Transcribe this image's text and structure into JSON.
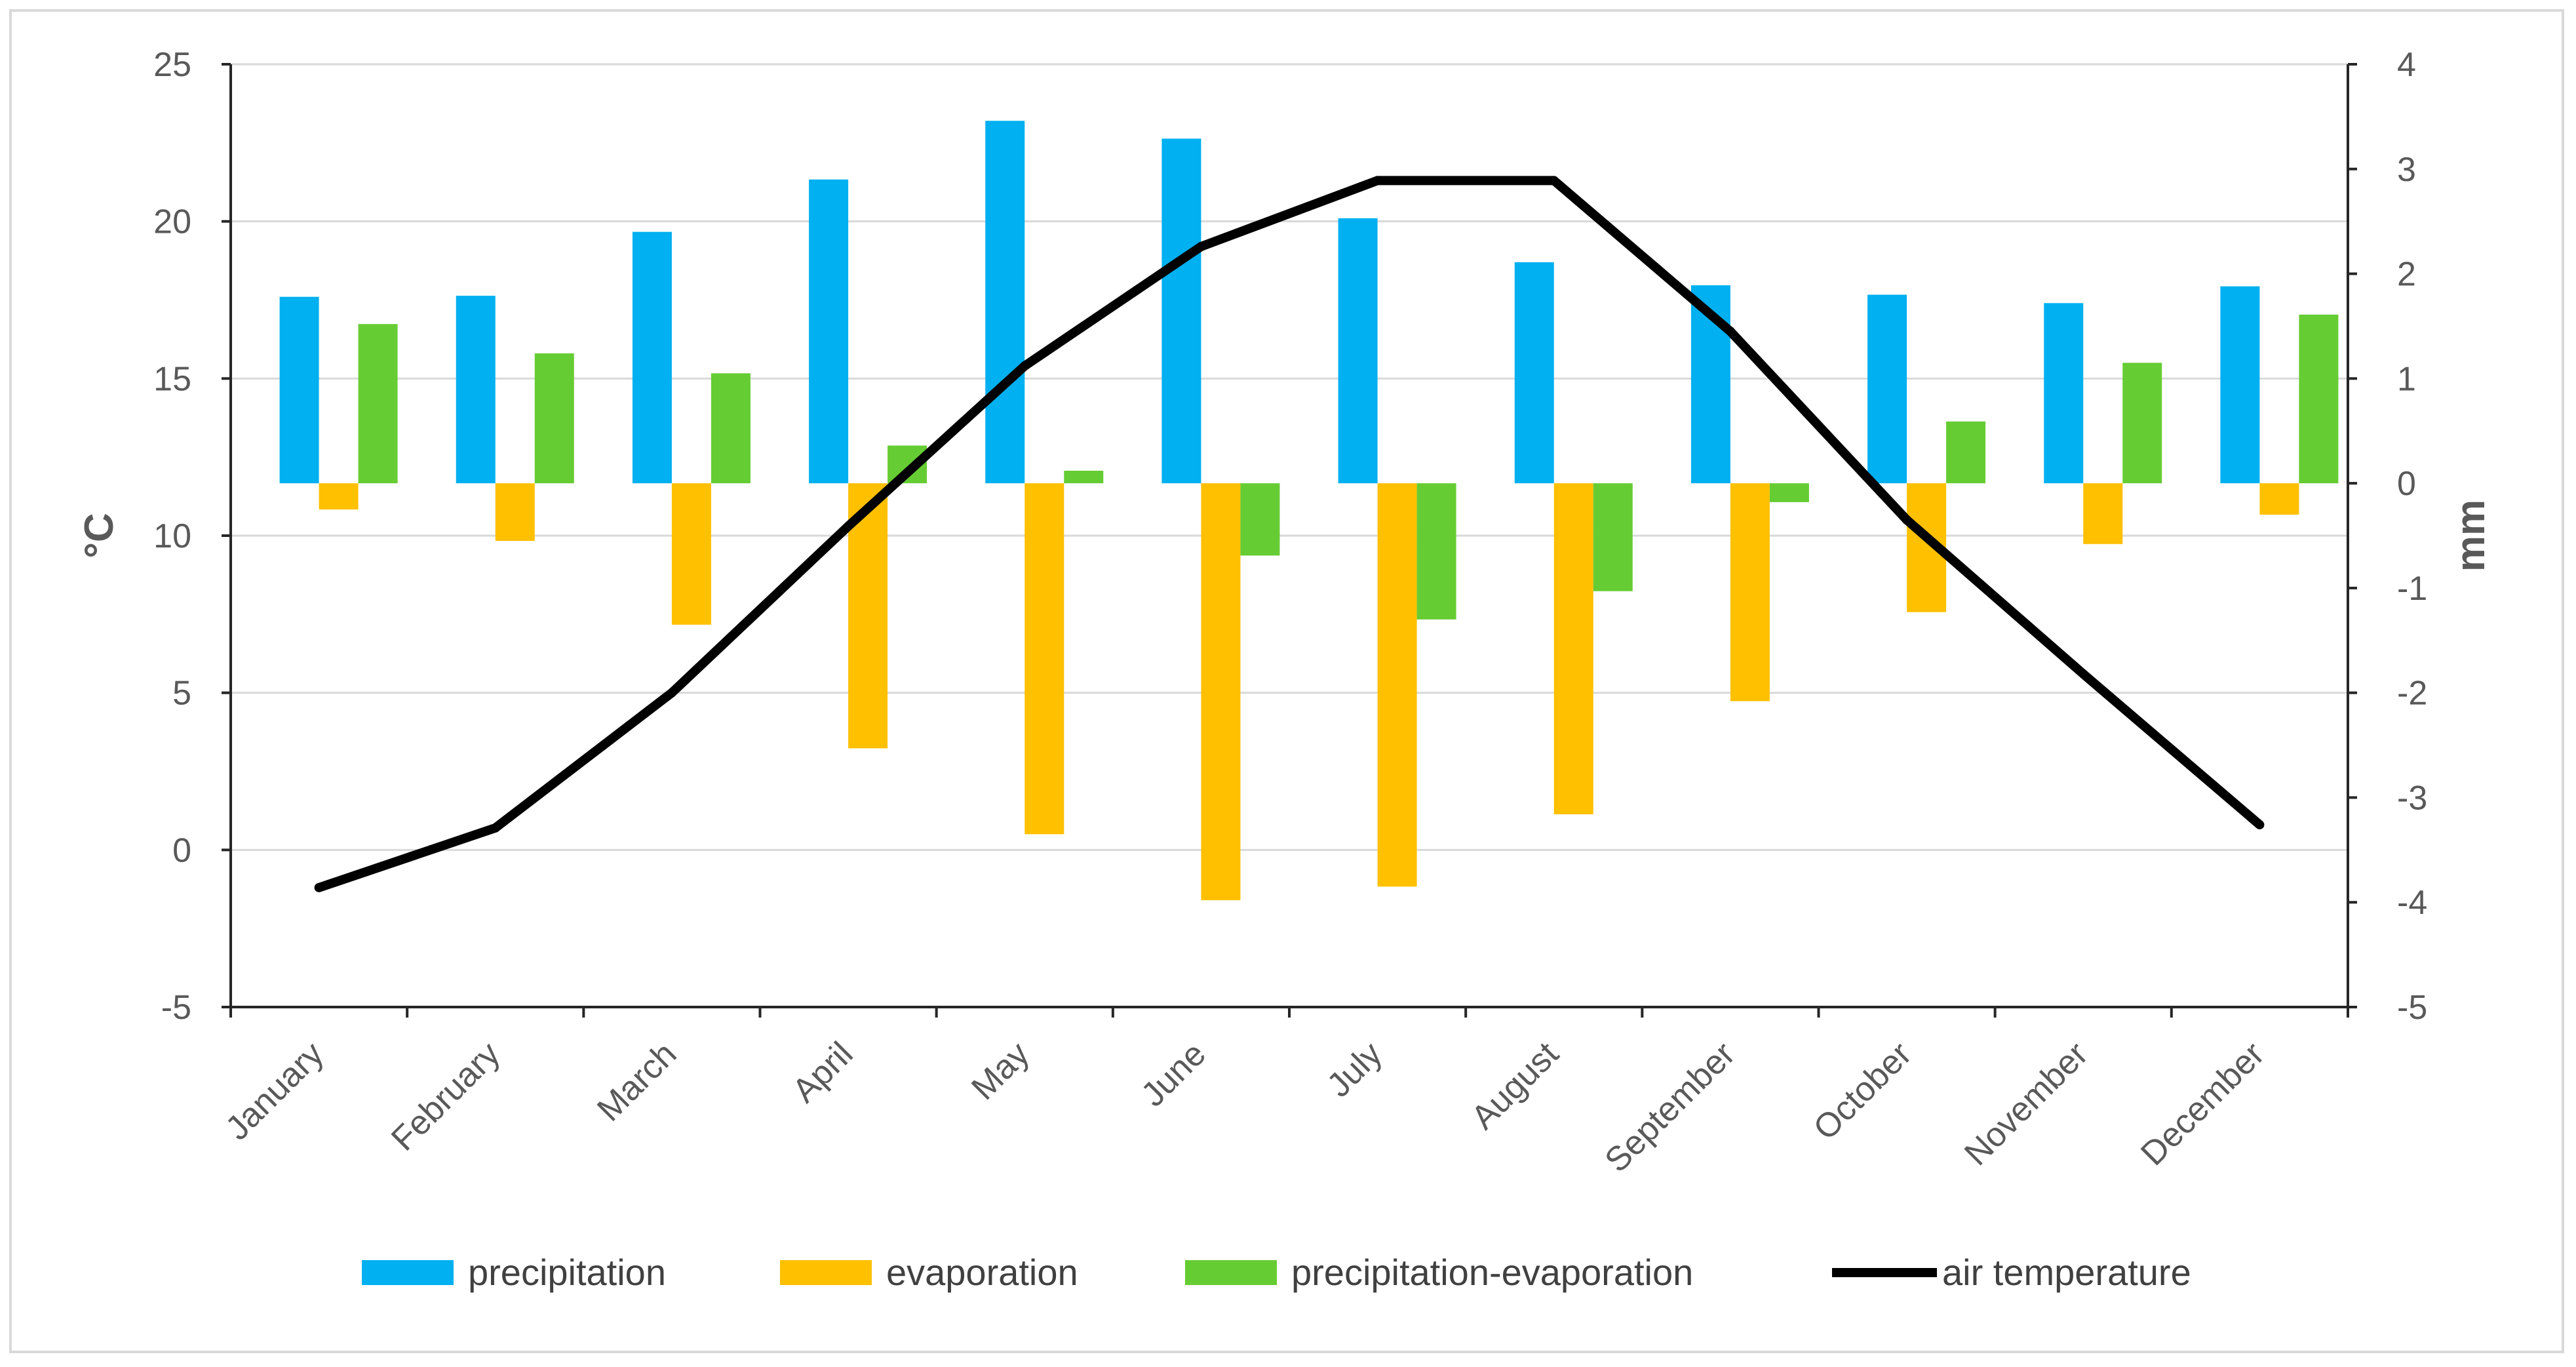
{
  "chart_data": {
    "type": "bar",
    "categories": [
      "January",
      "February",
      "March",
      "April",
      "May",
      "June",
      "July",
      "August",
      "September",
      "October",
      "November",
      "December"
    ],
    "series": [
      {
        "name": "precipitation",
        "axis": "right",
        "kind": "bar",
        "color": "#00b0f0",
        "values": [
          1.78,
          1.79,
          2.4,
          2.9,
          3.46,
          3.29,
          2.53,
          2.11,
          1.89,
          1.8,
          1.72,
          1.88
        ]
      },
      {
        "name": "evaporation",
        "axis": "right",
        "kind": "bar",
        "color": "#ffc000",
        "values": [
          -0.25,
          -0.55,
          -1.35,
          -2.53,
          -3.35,
          -3.98,
          -3.85,
          -3.16,
          -2.08,
          -1.23,
          -0.58,
          -0.3
        ]
      },
      {
        "name": "precipitation-evaporation",
        "axis": "right",
        "kind": "bar",
        "color": "#66cc33",
        "values": [
          1.52,
          1.24,
          1.05,
          0.36,
          0.12,
          -0.69,
          -1.3,
          -1.03,
          -0.18,
          0.59,
          1.15,
          1.61
        ]
      },
      {
        "name": "air temperature",
        "axis": "left",
        "kind": "line",
        "color": "#000000",
        "values": [
          -1.2,
          0.7,
          5.0,
          10.3,
          15.4,
          19.2,
          21.3,
          21.3,
          16.5,
          10.5,
          5.6,
          0.8
        ]
      }
    ],
    "left_axis": {
      "label": "°C",
      "min": -5,
      "max": 25,
      "step": 5,
      "ticks": [
        "-5",
        "0",
        "5",
        "10",
        "15",
        "20",
        "25"
      ]
    },
    "right_axis": {
      "label": "mm",
      "min": -5,
      "max": 4,
      "step": 1,
      "ticks": [
        "-5",
        "-4",
        "-3",
        "-2",
        "-1",
        "0",
        "1",
        "2",
        "3",
        "4"
      ]
    },
    "legend_position": "bottom",
    "grid": true
  }
}
